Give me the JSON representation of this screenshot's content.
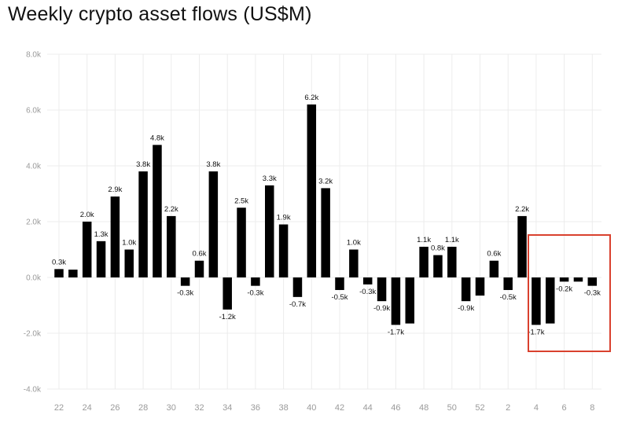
{
  "title": "Weekly crypto asset flows (US$M)",
  "chart_data": {
    "type": "bar",
    "title": "Weekly crypto asset flows (US$M)",
    "xlabel": "",
    "ylabel": "",
    "ylim": [
      -4000,
      8000
    ],
    "yticks": [
      8000,
      6000,
      4000,
      2000,
      0,
      -2000,
      -4000
    ],
    "ytick_labels": [
      "8.0k",
      "6.0k",
      "4.0k",
      "2.0k",
      "0.0k",
      "-2.0k",
      "-4.0k"
    ],
    "grid": true,
    "bar_color": "#000000",
    "highlight_color": "#d9412e",
    "categories": [
      "22",
      "23",
      "24",
      "25",
      "26",
      "27",
      "28",
      "29",
      "30",
      "31",
      "32",
      "33",
      "34",
      "35",
      "36",
      "37",
      "38",
      "39",
      "40",
      "41",
      "42",
      "43",
      "44",
      "45",
      "46",
      "47",
      "48",
      "49",
      "50",
      "51",
      "52",
      "1",
      "2",
      "3",
      "4",
      "5",
      "6",
      "7",
      "8"
    ],
    "xtick_labels": [
      "22",
      "24",
      "26",
      "28",
      "30",
      "32",
      "34",
      "36",
      "38",
      "40",
      "42",
      "44",
      "46",
      "48",
      "50",
      "52",
      "2",
      "4",
      "6",
      "8"
    ],
    "values": [
      300,
      280,
      2000,
      1300,
      2900,
      1000,
      3800,
      4750,
      2200,
      -300,
      600,
      3800,
      -1150,
      2500,
      -300,
      3300,
      1900,
      -700,
      6200,
      3200,
      -450,
      1000,
      -250,
      -850,
      -1700,
      -1650,
      1100,
      800,
      1100,
      -850,
      -650,
      600,
      -450,
      2200,
      -1700,
      -1650,
      -150,
      -150,
      -300
    ],
    "data_labels": [
      "0.3k",
      "",
      "2.0k",
      "1.3k",
      "2.9k",
      "1.0k",
      "3.8k",
      "4.8k",
      "2.2k",
      "-0.3k",
      "0.6k",
      "3.8k",
      "-1.2k",
      "2.5k",
      "-0.3k",
      "3.3k",
      "1.9k",
      "-0.7k",
      "6.2k",
      "3.2k",
      "-0.5k",
      "1.0k",
      "-0.3k",
      "-0.9k",
      "-1.7k",
      "",
      "1.1k",
      "0.8k",
      "1.1k",
      "-0.9k",
      "",
      "0.6k",
      "-0.5k",
      "2.2k",
      "-1.7k",
      "",
      "-0.2k",
      "",
      "-0.3k"
    ],
    "highlight_range": [
      34,
      38
    ]
  }
}
